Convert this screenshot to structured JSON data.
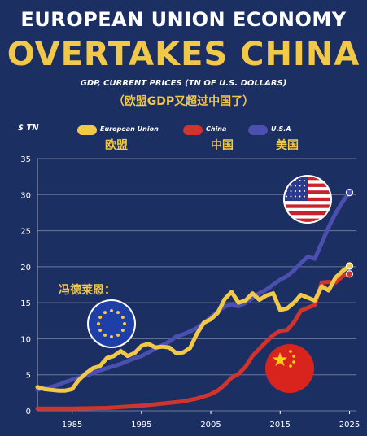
{
  "header": {
    "title_line1": "EUROPEAN UNION ECONOMY",
    "title_line2": "OVERTAKES CHINA",
    "subtitle": "GDP, CURRENT PRICES (TN OF U.S. DOLLARS)",
    "subtitle_cn": "（欧盟GDP又超过中国了）"
  },
  "quote": "冯德莱恩：",
  "colors": {
    "eu": "#f2c849",
    "china": "#d0342c",
    "usa": "#4b4fb0",
    "background": "#1c2f63"
  },
  "legend": [
    {
      "name": "European Union",
      "cn": "欧盟",
      "color": "#f2c849"
    },
    {
      "name": "China",
      "cn": "中国",
      "color": "#d0342c"
    },
    {
      "name": "U.S.A",
      "cn": "美国",
      "color": "#4b4fb0"
    }
  ],
  "icons": [
    "eu-flag-icon",
    "usa-flag-icon",
    "china-flag-icon"
  ],
  "chart_data": {
    "type": "line",
    "ylabel": "$ TN",
    "ylim": [
      0,
      35
    ],
    "yticks": [
      "0",
      "5",
      "10",
      "15",
      "20",
      "25",
      "30",
      "35"
    ],
    "xlim": [
      1980,
      2026
    ],
    "xticks": [
      "1985",
      "1995",
      "2005",
      "2015",
      "2025"
    ],
    "grid": true,
    "legend_position": "top",
    "series": [
      {
        "name": "European Union",
        "color": "#f2c849",
        "x": [
          1980,
          1981,
          1982,
          1983,
          1984,
          1985,
          1986,
          1987,
          1988,
          1989,
          1990,
          1991,
          1992,
          1993,
          1994,
          1995,
          1996,
          1997,
          1998,
          1999,
          2000,
          2001,
          2002,
          2003,
          2004,
          2005,
          2006,
          2007,
          2008,
          2009,
          2010,
          2011,
          2012,
          2013,
          2014,
          2015,
          2016,
          2017,
          2018,
          2019,
          2020,
          2021,
          2022,
          2023,
          2024,
          2025
        ],
        "values": [
          3.3,
          3.0,
          2.9,
          2.8,
          2.8,
          3.0,
          4.3,
          5.2,
          5.9,
          6.2,
          7.3,
          7.6,
          8.3,
          7.6,
          8.0,
          9.0,
          9.3,
          8.8,
          8.9,
          8.8,
          8.0,
          8.1,
          8.7,
          10.7,
          12.2,
          12.7,
          13.6,
          15.5,
          16.5,
          15.0,
          15.3,
          16.3,
          15.4,
          16.0,
          16.3,
          14.0,
          14.2,
          15.0,
          16.1,
          15.7,
          15.3,
          17.3,
          16.7,
          18.5,
          19.4,
          20.1
        ]
      },
      {
        "name": "China",
        "color": "#d0342c",
        "x": [
          1980,
          1985,
          1990,
          1995,
          2000,
          2001,
          2002,
          2003,
          2004,
          2005,
          2006,
          2007,
          2008,
          2009,
          2010,
          2011,
          2012,
          2013,
          2014,
          2015,
          2016,
          2017,
          2018,
          2019,
          2020,
          2021,
          2022,
          2023,
          2024,
          2025
        ],
        "values": [
          0.3,
          0.3,
          0.4,
          0.7,
          1.2,
          1.3,
          1.5,
          1.7,
          2.0,
          2.3,
          2.8,
          3.6,
          4.6,
          5.1,
          6.1,
          7.6,
          8.6,
          9.6,
          10.5,
          11.1,
          11.2,
          12.3,
          13.9,
          14.3,
          14.7,
          17.8,
          17.9,
          17.8,
          18.7,
          19.0
        ]
      },
      {
        "name": "U.S.A",
        "color": "#4b4fb0",
        "x": [
          1980,
          1981,
          1982,
          1983,
          1984,
          1985,
          1986,
          1987,
          1988,
          1989,
          1990,
          1991,
          1992,
          1993,
          1994,
          1995,
          1996,
          1997,
          1998,
          1999,
          2000,
          2001,
          2002,
          2003,
          2004,
          2005,
          2006,
          2007,
          2008,
          2009,
          2010,
          2011,
          2012,
          2013,
          2014,
          2015,
          2016,
          2017,
          2018,
          2019,
          2020,
          2021,
          2022,
          2023,
          2024,
          2025
        ],
        "values": [
          2.9,
          3.2,
          3.3,
          3.6,
          4.0,
          4.3,
          4.6,
          4.9,
          5.2,
          5.6,
          5.9,
          6.2,
          6.5,
          6.9,
          7.3,
          7.6,
          8.1,
          8.6,
          9.1,
          9.6,
          10.3,
          10.6,
          11.0,
          11.5,
          12.2,
          13.0,
          13.8,
          14.5,
          14.7,
          14.5,
          15.0,
          15.6,
          16.3,
          16.8,
          17.5,
          18.2,
          18.7,
          19.5,
          20.5,
          21.4,
          21.1,
          23.3,
          25.5,
          27.4,
          29.0,
          30.3
        ]
      }
    ]
  }
}
